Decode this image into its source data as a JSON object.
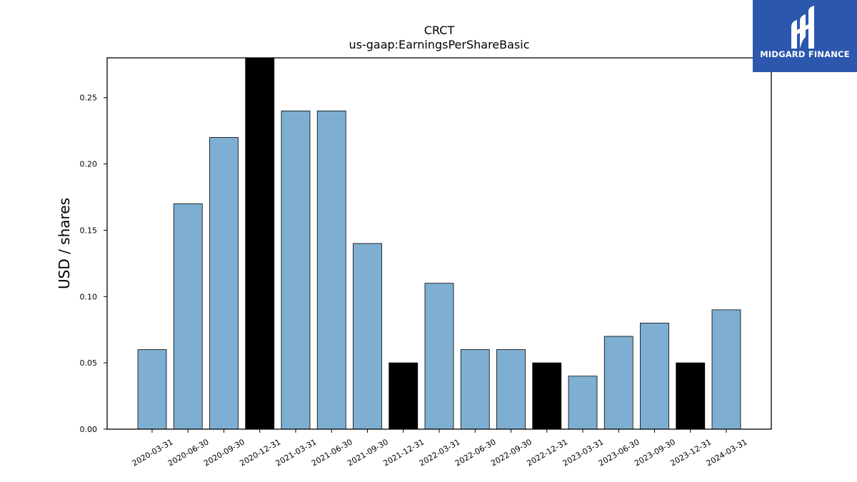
{
  "logo": {
    "text": "MIDGARD FINANCE",
    "color": "#2b57ac"
  },
  "chart_data": {
    "type": "bar",
    "title": "CRCT",
    "subtitle": "us-gaap:EarningsPerShareBasic",
    "ylabel": "USD / shares",
    "xlabel": "",
    "ylim": [
      0,
      0.28
    ],
    "yticks": [
      "0.00",
      "0.05",
      "0.10",
      "0.15",
      "0.20",
      "0.25"
    ],
    "categories": [
      "2020-03-31",
      "2020-06-30",
      "2020-09-30",
      "2020-12-31",
      "2021-03-31",
      "2021-06-30",
      "2021-09-30",
      "2021-12-31",
      "2022-03-31",
      "2022-06-30",
      "2022-09-30",
      "2022-12-31",
      "2023-03-31",
      "2023-06-30",
      "2023-09-30",
      "2023-12-31",
      "2024-03-31"
    ],
    "values": [
      0.06,
      0.17,
      0.22,
      0.28,
      0.24,
      0.24,
      0.14,
      0.05,
      0.11,
      0.06,
      0.06,
      0.05,
      0.04,
      0.07,
      0.08,
      0.05,
      0.09
    ],
    "highlight": [
      false,
      false,
      false,
      true,
      false,
      false,
      false,
      true,
      false,
      false,
      false,
      true,
      false,
      false,
      false,
      true,
      false
    ],
    "colors": {
      "bar": "#7eafd2",
      "highlight": "#000000",
      "edge": "#000000"
    },
    "grid": false,
    "legend": "none"
  }
}
